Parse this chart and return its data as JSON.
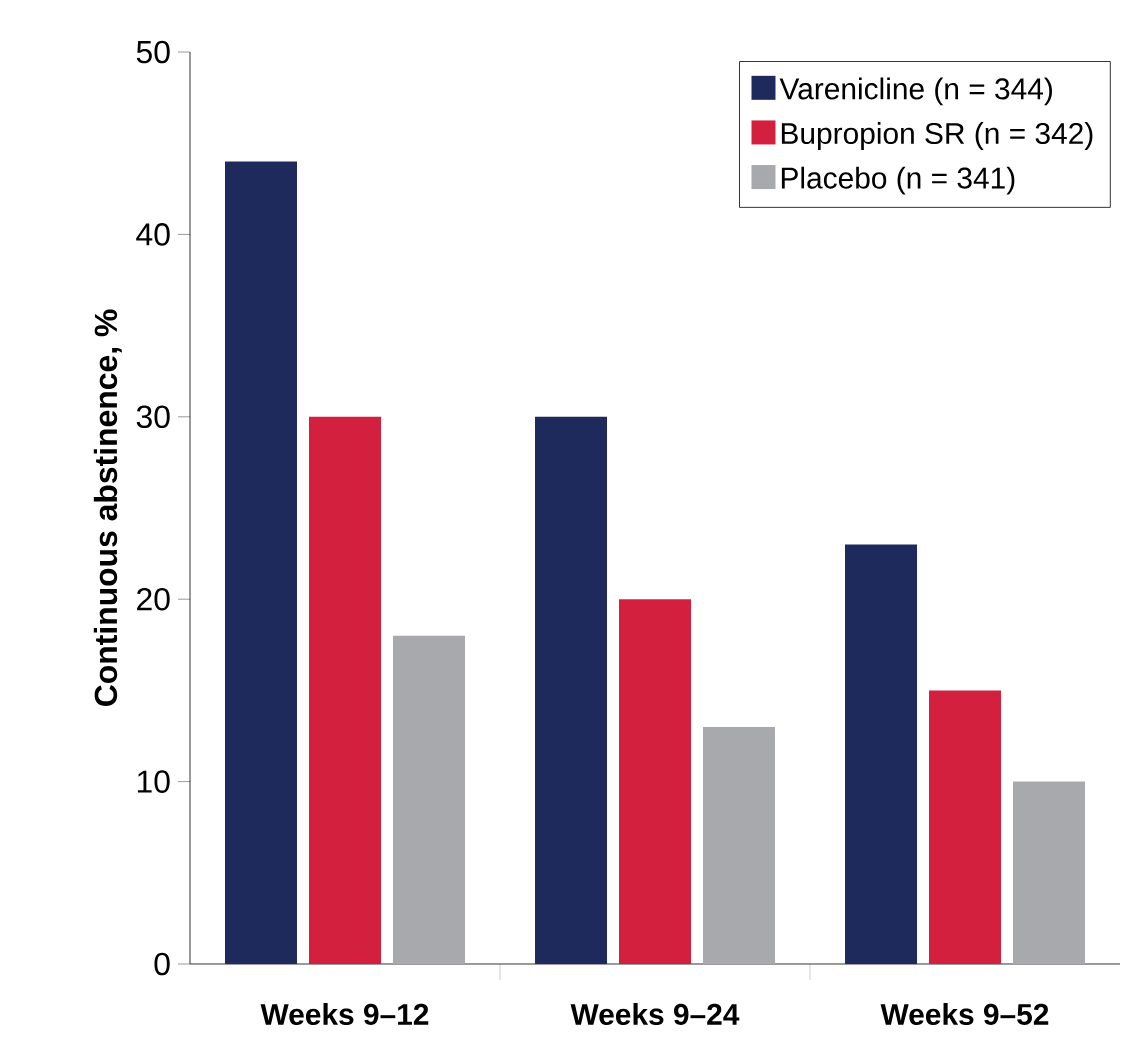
{
  "chart_data": {
    "type": "bar",
    "ylabel": "Continuous abstinence, %",
    "categories": [
      "Weeks 9–12",
      "Weeks 9–24",
      "Weeks 9–52"
    ],
    "series": [
      {
        "name": "Varenicline (n = 344)",
        "color": "#1f2a5c",
        "values": [
          44,
          30,
          23
        ]
      },
      {
        "name": "Bupropion SR (n = 342)",
        "color": "#d3203f",
        "values": [
          30,
          20,
          15
        ]
      },
      {
        "name": "Placebo (n = 341)",
        "color": "#a7a9ac",
        "values": [
          18,
          13,
          10
        ]
      }
    ],
    "ylim": [
      0,
      50
    ],
    "yticks": [
      0,
      10,
      20,
      30,
      40,
      50
    ],
    "grid": false,
    "legend": "top right"
  }
}
